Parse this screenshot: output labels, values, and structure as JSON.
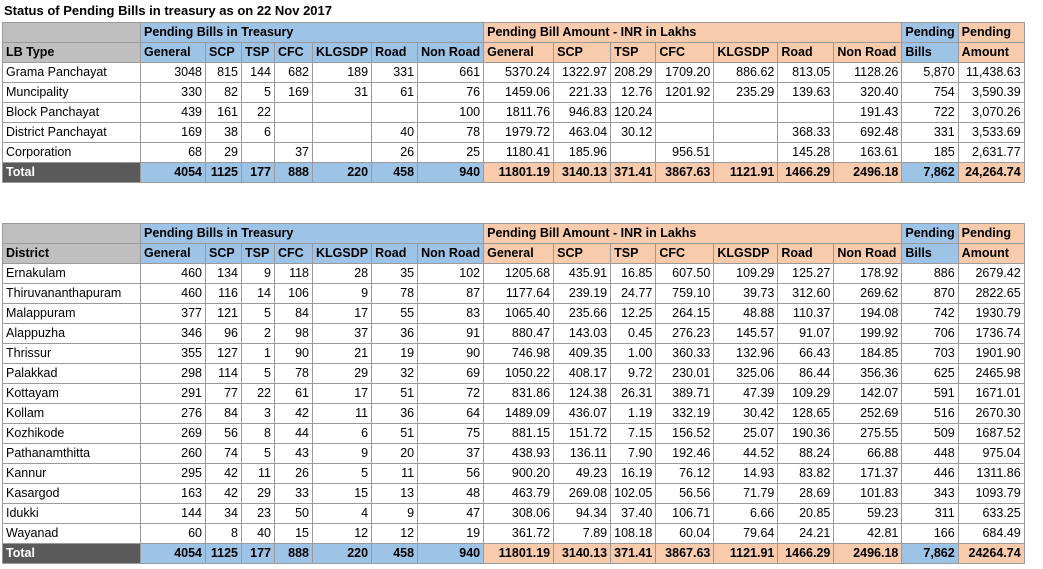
{
  "title": "Status of Pending Bills in treasury as on 22 Nov 2017",
  "group_headers": {
    "bills": "Pending Bills in Treasury",
    "amount": "Pending Bill Amount - INR in Lakhs",
    "pending_bills_top": "Pending",
    "pending_bills_bottom": "Bills",
    "pending_amount_top": "Pending",
    "pending_amount_bottom": "Amount"
  },
  "columns": [
    "General",
    "SCP",
    "TSP",
    "CFC",
    "KLGSDP",
    "Road",
    "Non Road"
  ],
  "lb_table": {
    "stub_header": "LB Type",
    "rows": [
      {
        "name": "Grama Panchayat",
        "bills": [
          "3048",
          "815",
          "144",
          "682",
          "189",
          "331",
          "661"
        ],
        "amount": [
          "5370.24",
          "1322.97",
          "208.29",
          "1709.20",
          "886.62",
          "813.05",
          "1128.26"
        ],
        "pending_bills": "5,870",
        "pending_amount": "11,438.63"
      },
      {
        "name": "Muncipality",
        "bills": [
          "330",
          "82",
          "5",
          "169",
          "31",
          "61",
          "76"
        ],
        "amount": [
          "1459.06",
          "221.33",
          "12.76",
          "1201.92",
          "235.29",
          "139.63",
          "320.40"
        ],
        "pending_bills": "754",
        "pending_amount": "3,590.39"
      },
      {
        "name": "Block Panchayat",
        "bills": [
          "439",
          "161",
          "22",
          "",
          "",
          "",
          "100"
        ],
        "amount": [
          "1811.76",
          "946.83",
          "120.24",
          "",
          "",
          "",
          "191.43"
        ],
        "pending_bills": "722",
        "pending_amount": "3,070.26"
      },
      {
        "name": "District Panchayat",
        "bills": [
          "169",
          "38",
          "6",
          "",
          "",
          "40",
          "78"
        ],
        "amount": [
          "1979.72",
          "463.04",
          "30.12",
          "",
          "",
          "368.33",
          "692.48"
        ],
        "pending_bills": "331",
        "pending_amount": "3,533.69"
      },
      {
        "name": "Corporation",
        "bills": [
          "68",
          "29",
          "",
          "37",
          "",
          "26",
          "25"
        ],
        "amount": [
          "1180.41",
          "185.96",
          "",
          "956.51",
          "",
          "145.28",
          "163.61"
        ],
        "pending_bills": "185",
        "pending_amount": "2,631.77"
      }
    ],
    "total": {
      "name": "Total",
      "bills": [
        "4054",
        "1125",
        "177",
        "888",
        "220",
        "458",
        "940"
      ],
      "amount": [
        "11801.19",
        "3140.13",
        "371.41",
        "3867.63",
        "1121.91",
        "1466.29",
        "2496.18"
      ],
      "pending_bills": "7,862",
      "pending_amount": "24,264.74"
    }
  },
  "district_table": {
    "stub_header": "District",
    "rows": [
      {
        "name": "Ernakulam",
        "bills": [
          "460",
          "134",
          "9",
          "118",
          "28",
          "35",
          "102"
        ],
        "amount": [
          "1205.68",
          "435.91",
          "16.85",
          "607.50",
          "109.29",
          "125.27",
          "178.92"
        ],
        "pending_bills": "886",
        "pending_amount": "2679.42"
      },
      {
        "name": "Thiruvananthapuram",
        "bills": [
          "460",
          "116",
          "14",
          "106",
          "9",
          "78",
          "87"
        ],
        "amount": [
          "1177.64",
          "239.19",
          "24.77",
          "759.10",
          "39.73",
          "312.60",
          "269.62"
        ],
        "pending_bills": "870",
        "pending_amount": "2822.65"
      },
      {
        "name": "Malappuram",
        "bills": [
          "377",
          "121",
          "5",
          "84",
          "17",
          "55",
          "83"
        ],
        "amount": [
          "1065.40",
          "235.66",
          "12.25",
          "264.15",
          "48.88",
          "110.37",
          "194.08"
        ],
        "pending_bills": "742",
        "pending_amount": "1930.79"
      },
      {
        "name": "Alappuzha",
        "bills": [
          "346",
          "96",
          "2",
          "98",
          "37",
          "36",
          "91"
        ],
        "amount": [
          "880.47",
          "143.03",
          "0.45",
          "276.23",
          "145.57",
          "91.07",
          "199.92"
        ],
        "pending_bills": "706",
        "pending_amount": "1736.74"
      },
      {
        "name": "Thrissur",
        "bills": [
          "355",
          "127",
          "1",
          "90",
          "21",
          "19",
          "90"
        ],
        "amount": [
          "746.98",
          "409.35",
          "1.00",
          "360.33",
          "132.96",
          "66.43",
          "184.85"
        ],
        "pending_bills": "703",
        "pending_amount": "1901.90"
      },
      {
        "name": "Palakkad",
        "bills": [
          "298",
          "114",
          "5",
          "78",
          "29",
          "32",
          "69"
        ],
        "amount": [
          "1050.22",
          "408.17",
          "9.72",
          "230.01",
          "325.06",
          "86.44",
          "356.36"
        ],
        "pending_bills": "625",
        "pending_amount": "2465.98"
      },
      {
        "name": "Kottayam",
        "bills": [
          "291",
          "77",
          "22",
          "61",
          "17",
          "51",
          "72"
        ],
        "amount": [
          "831.86",
          "124.38",
          "26.31",
          "389.71",
          "47.39",
          "109.29",
          "142.07"
        ],
        "pending_bills": "591",
        "pending_amount": "1671.01"
      },
      {
        "name": "Kollam",
        "bills": [
          "276",
          "84",
          "3",
          "42",
          "11",
          "36",
          "64"
        ],
        "amount": [
          "1489.09",
          "436.07",
          "1.19",
          "332.19",
          "30.42",
          "128.65",
          "252.69"
        ],
        "pending_bills": "516",
        "pending_amount": "2670.30"
      },
      {
        "name": "Kozhikode",
        "bills": [
          "269",
          "56",
          "8",
          "44",
          "6",
          "51",
          "75"
        ],
        "amount": [
          "881.15",
          "151.72",
          "7.15",
          "156.52",
          "25.07",
          "190.36",
          "275.55"
        ],
        "pending_bills": "509",
        "pending_amount": "1687.52"
      },
      {
        "name": "Pathanamthitta",
        "bills": [
          "260",
          "74",
          "5",
          "43",
          "9",
          "20",
          "37"
        ],
        "amount": [
          "438.93",
          "136.11",
          "7.90",
          "192.46",
          "44.52",
          "88.24",
          "66.88"
        ],
        "pending_bills": "448",
        "pending_amount": "975.04"
      },
      {
        "name": "Kannur",
        "bills": [
          "295",
          "42",
          "11",
          "26",
          "5",
          "11",
          "56"
        ],
        "amount": [
          "900.20",
          "49.23",
          "16.19",
          "76.12",
          "14.93",
          "83.82",
          "171.37"
        ],
        "pending_bills": "446",
        "pending_amount": "1311.86"
      },
      {
        "name": "Kasargod",
        "bills": [
          "163",
          "42",
          "29",
          "33",
          "15",
          "13",
          "48"
        ],
        "amount": [
          "463.79",
          "269.08",
          "102.05",
          "56.56",
          "71.79",
          "28.69",
          "101.83"
        ],
        "pending_bills": "343",
        "pending_amount": "1093.79"
      },
      {
        "name": "Idukki",
        "bills": [
          "144",
          "34",
          "23",
          "50",
          "4",
          "9",
          "47"
        ],
        "amount": [
          "308.06",
          "94.34",
          "37.40",
          "106.71",
          "6.66",
          "20.85",
          "59.23"
        ],
        "pending_bills": "311",
        "pending_amount": "633.25"
      },
      {
        "name": "Wayanad",
        "bills": [
          "60",
          "8",
          "40",
          "15",
          "12",
          "12",
          "19"
        ],
        "amount": [
          "361.72",
          "7.89",
          "108.18",
          "60.04",
          "79.64",
          "24.21",
          "42.81"
        ],
        "pending_bills": "166",
        "pending_amount": "684.49"
      }
    ],
    "total": {
      "name": "Total",
      "bills": [
        "4054",
        "1125",
        "177",
        "888",
        "220",
        "458",
        "940"
      ],
      "amount": [
        "11801.19",
        "3140.13",
        "371.41",
        "3867.63",
        "1121.91",
        "1466.29",
        "2496.18"
      ],
      "pending_bills": "7,862",
      "pending_amount": "24264.74"
    }
  }
}
